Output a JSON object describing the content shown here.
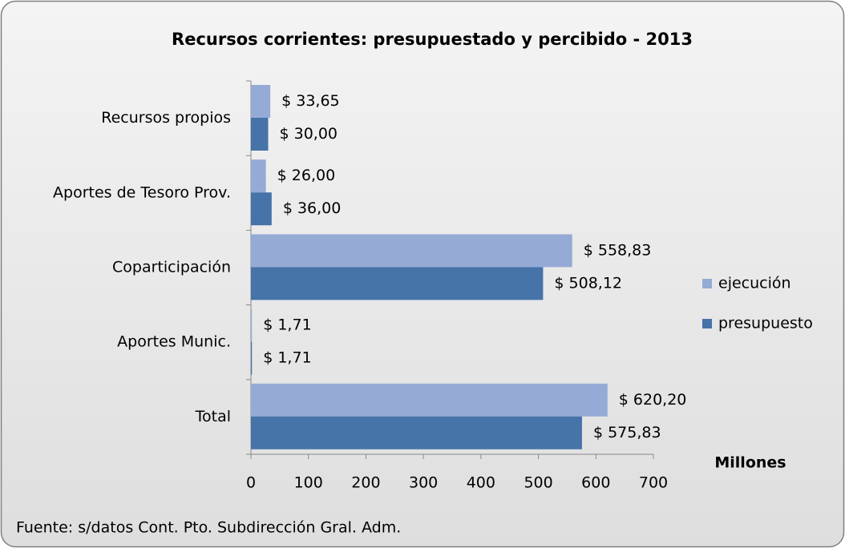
{
  "chart_data": {
    "type": "bar",
    "orientation": "horizontal",
    "title": "Recursos corrientes: presupuestado y percibido -  2013",
    "categories": [
      "Recursos propios",
      "Aportes de Tesoro Prov.",
      "Coparticipación",
      "Aportes Munic.",
      "Total"
    ],
    "series": [
      {
        "name": "ejecución",
        "color": "#95abd6",
        "values": [
          33.65,
          26.0,
          558.83,
          1.71,
          620.2
        ],
        "value_labels": [
          "$ 33,65",
          "$ 26,00",
          "$ 558,83",
          "$ 1,71",
          "$ 620,20"
        ]
      },
      {
        "name": "presupuesto",
        "color": "#4673a8",
        "values": [
          30.0,
          36.0,
          508.12,
          1.71,
          575.83
        ],
        "value_labels": [
          "$ 30,00",
          "$ 36,00",
          "$ 508,12",
          "$ 1,71",
          "$ 575,83"
        ]
      }
    ],
    "xlim": [
      0,
      700
    ],
    "xticks": [
      0,
      100,
      200,
      300,
      400,
      500,
      600,
      700
    ],
    "x_label": "Millones",
    "legend": "right",
    "source": "Fuente: s/datos Cont. Pto. Subdirección Gral. Adm."
  }
}
